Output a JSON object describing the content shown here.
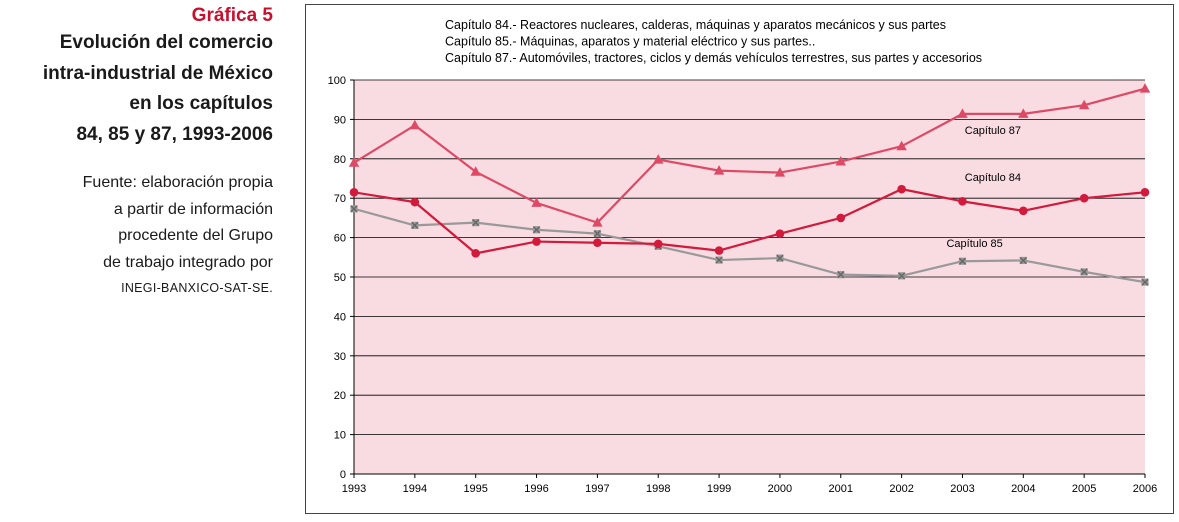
{
  "caption": {
    "kicker": "Gráfica 5",
    "title_lines": [
      "Evolución del comercio",
      "intra-industrial de México",
      "en los capítulos",
      "84, 85 y 87, 1993-2006"
    ],
    "source_lines": [
      "Fuente: elaboración propia",
      "a partir de información",
      "procedente del Grupo",
      "de trabajo integrado por"
    ],
    "source_org": "INEGI-BANXICO-SAT-SE."
  },
  "colors": {
    "plot_bg": "#f9dce2",
    "grid": "#000000",
    "cap84": "#d11a3c",
    "cap85": "#999999",
    "cap87": "#de4a66",
    "kicker": "#c8102e"
  },
  "chart_data": {
    "type": "line",
    "title": "",
    "xlabel": "",
    "ylabel": "",
    "ylim": [
      0,
      100
    ],
    "yticks": [
      "0",
      "10",
      "20",
      "30",
      "40",
      "50",
      "60",
      "70",
      "80",
      "90",
      "100"
    ],
    "x": [
      "1993",
      "1994",
      "1995",
      "1996",
      "1997",
      "1998",
      "1999",
      "2000",
      "2001",
      "2002",
      "2003",
      "2004",
      "2005",
      "2006"
    ],
    "grid": "horizontal",
    "legend_position": "top",
    "legend": [
      "Capítulo 84.- Reactores nucleares, calderas, máquinas y aparatos mecánicos y sus partes",
      "Capítulo 85.- Máquinas, aparatos y material eléctrico y sus partes..",
      "Capítulo 87.- Automóviles, tractores, ciclos y demás vehículos terrestres, sus partes y accesorios"
    ],
    "series": [
      {
        "name": "Capítulo 84",
        "key": "cap84",
        "marker": "circle",
        "values": [
          71.5,
          69.0,
          56.0,
          59.0,
          58.7,
          58.4,
          56.7,
          61.0,
          65.0,
          72.3,
          69.2,
          66.8,
          70.0,
          71.5
        ]
      },
      {
        "name": "Capítulo 85",
        "key": "cap85",
        "marker": "x-square",
        "values": [
          67.3,
          63.1,
          63.8,
          62.0,
          61.0,
          57.8,
          54.3,
          54.8,
          50.6,
          50.3,
          54.0,
          54.2,
          51.3,
          48.7
        ]
      },
      {
        "name": "Capítulo 87",
        "key": "cap87",
        "marker": "triangle",
        "values": [
          79.0,
          88.5,
          76.7,
          68.8,
          63.8,
          79.8,
          77.0,
          76.5,
          79.3,
          83.2,
          91.4,
          91.4,
          93.6,
          97.8
        ]
      }
    ]
  }
}
